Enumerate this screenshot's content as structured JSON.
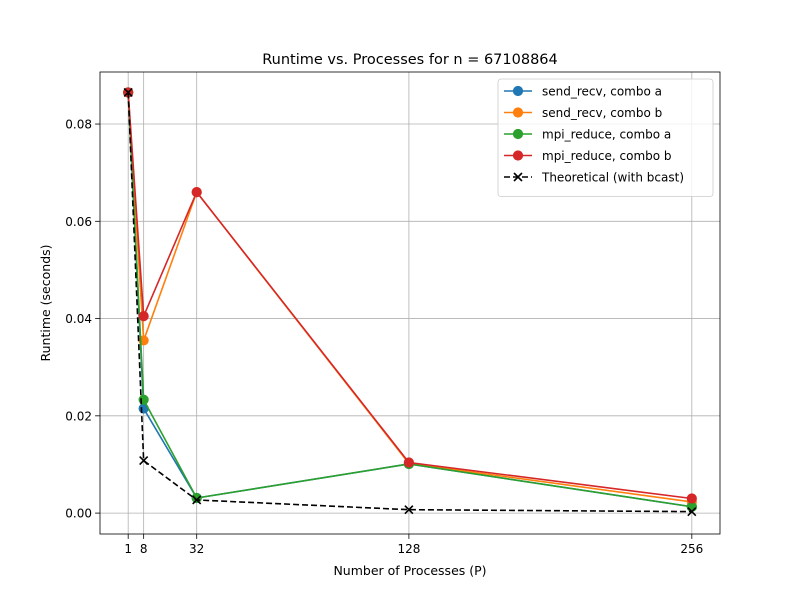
{
  "chart_data": {
    "type": "line",
    "title": "Runtime vs. Processes for n = 67108864",
    "xlabel": "Number of Processes (P)",
    "ylabel": "Runtime (seconds)",
    "x": [
      1,
      8,
      32,
      128,
      256
    ],
    "xticks": [
      1,
      8,
      32,
      128,
      256
    ],
    "yticks": [
      0.0,
      0.02,
      0.04,
      0.06,
      0.08
    ],
    "ytick_labels": [
      "0.00",
      "0.02",
      "0.04",
      "0.06",
      "0.08"
    ],
    "xlim": [
      -11.75,
      268.75
    ],
    "ylim": [
      -0.0043,
      0.0907
    ],
    "grid": true,
    "legend_position": "top-right",
    "series": [
      {
        "name": "send_recv, combo a",
        "color": "#1f77b4",
        "marker": "circle",
        "dashed": false,
        "values": [
          0.0865,
          0.0215,
          0.0031,
          0.0101,
          0.0013
        ]
      },
      {
        "name": "send_recv, combo b",
        "color": "#ff7f0e",
        "marker": "circle",
        "dashed": false,
        "values": [
          0.0865,
          0.0355,
          0.066,
          0.0102,
          0.0023
        ]
      },
      {
        "name": "mpi_reduce, combo a",
        "color": "#2ca02c",
        "marker": "circle",
        "dashed": false,
        "values": [
          0.0865,
          0.0233,
          0.0031,
          0.0101,
          0.0013
        ]
      },
      {
        "name": "mpi_reduce, combo b",
        "color": "#d62728",
        "marker": "circle",
        "dashed": false,
        "values": [
          0.0865,
          0.0405,
          0.066,
          0.0104,
          0.003
        ]
      },
      {
        "name": "Theoretical (with bcast)",
        "color": "#000000",
        "marker": "x",
        "dashed": true,
        "values": [
          0.0865,
          0.0108,
          0.0027,
          0.0007,
          0.0003
        ]
      }
    ]
  }
}
